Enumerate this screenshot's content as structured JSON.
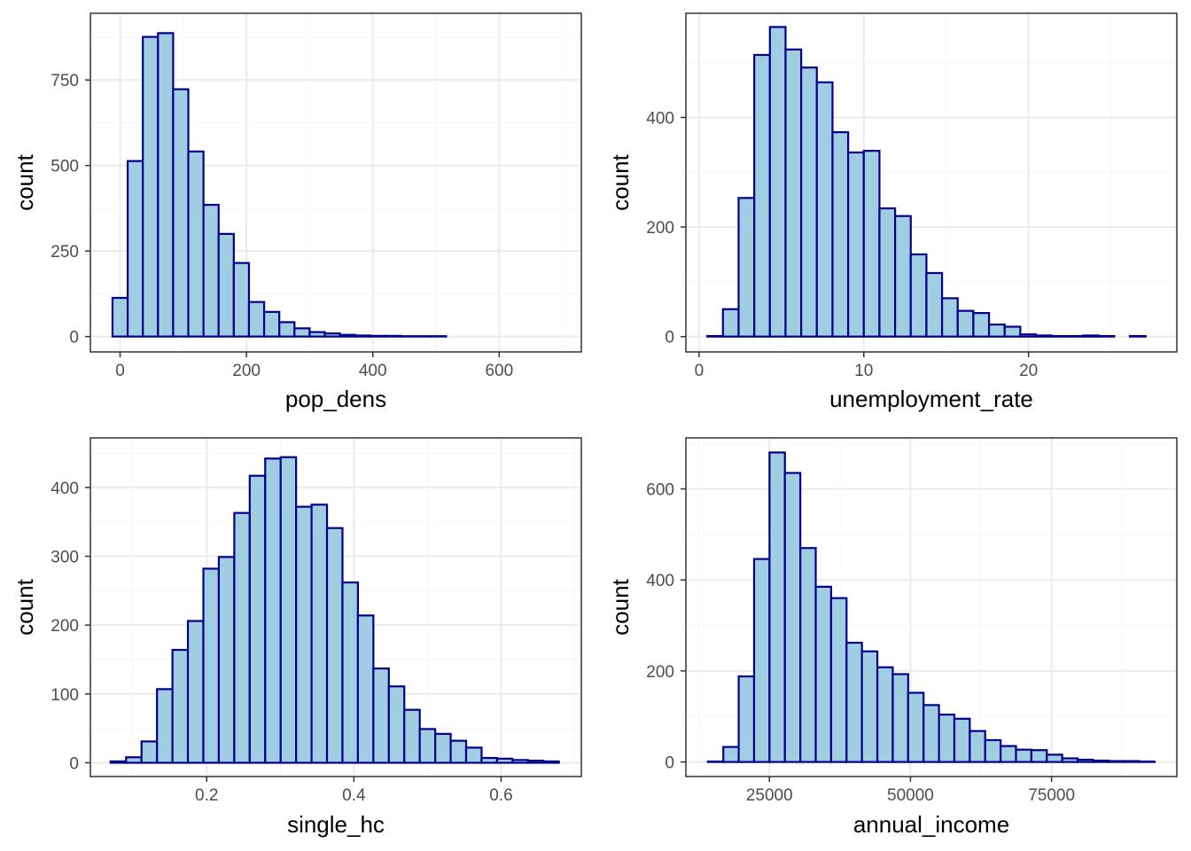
{
  "colors": {
    "bar_fill": "#a1cde3",
    "bar_stroke": "#00008b",
    "panel_border": "#333333",
    "grid_major": "#ebebeb",
    "grid_minor": "#f5f5f5",
    "tick_text": "#4d4d4d"
  },
  "chart_data": [
    {
      "type": "bar",
      "subtype": "histogram",
      "xlabel": "pop_dens",
      "ylabel": "count",
      "xlim": [
        -47,
        730
      ],
      "ylim": [
        -45,
        945
      ],
      "xticks": [
        0,
        200,
        400,
        600
      ],
      "yticks": [
        0,
        250,
        500,
        750
      ],
      "xticks_minor": [
        100,
        300,
        500,
        700
      ],
      "yticks_minor": [
        125,
        375,
        625,
        875
      ],
      "bin_start": -12,
      "bin_width": 24,
      "counts": [
        113,
        513,
        876,
        887,
        723,
        541,
        385,
        300,
        215,
        101,
        72,
        42,
        24,
        13,
        9,
        5,
        3,
        2,
        2,
        1,
        1,
        1,
        0,
        0,
        0,
        0,
        0,
        0,
        0
      ],
      "grid": true
    },
    {
      "type": "bar",
      "subtype": "histogram",
      "xlabel": "unemployment_rate",
      "ylabel": "count",
      "xlim": [
        -0.8,
        29.0
      ],
      "ylim": [
        -28,
        590
      ],
      "xticks": [
        0,
        10,
        20
      ],
      "yticks": [
        0,
        200,
        400
      ],
      "xticks_minor": [
        5,
        15,
        25
      ],
      "yticks_minor": [
        100,
        300,
        500
      ],
      "bin_start": 0.5,
      "bin_width": 0.95,
      "counts": [
        1,
        50,
        253,
        514,
        565,
        524,
        491,
        464,
        373,
        336,
        339,
        234,
        220,
        150,
        116,
        70,
        47,
        43,
        22,
        18,
        4,
        2,
        1,
        1,
        2,
        1,
        0,
        1
      ],
      "grid": true
    },
    {
      "type": "bar",
      "subtype": "histogram",
      "xlabel": "single_hc",
      "ylabel": "count",
      "xlim": [
        0.042,
        0.709
      ],
      "ylim": [
        -20,
        472
      ],
      "xticks": [
        0.2,
        0.4,
        0.6
      ],
      "yticks": [
        0,
        100,
        200,
        300,
        400
      ],
      "xticks_minor": [
        0.1,
        0.3,
        0.5,
        0.7
      ],
      "yticks_minor": [
        50,
        150,
        250,
        350,
        450
      ],
      "bin_start": 0.0695,
      "bin_width": 0.021,
      "counts": [
        2,
        8,
        31,
        107,
        164,
        206,
        282,
        299,
        363,
        417,
        442,
        444,
        372,
        375,
        341,
        262,
        214,
        137,
        111,
        77,
        49,
        42,
        32,
        22,
        7,
        6,
        4,
        3,
        2
      ],
      "grid": true
    },
    {
      "type": "bar",
      "subtype": "histogram",
      "xlabel": "annual_income",
      "ylabel": "count",
      "xlim": [
        10200,
        97200
      ],
      "ylim": [
        -32,
        712
      ],
      "xticks": [
        25000,
        50000,
        75000
      ],
      "yticks": [
        0,
        200,
        400,
        600
      ],
      "xticks_minor": [
        12500,
        37500,
        62500,
        87500
      ],
      "yticks_minor": [
        100,
        300,
        500,
        700
      ],
      "bin_start": 14100,
      "bin_width": 2730,
      "counts": [
        1,
        33,
        188,
        446,
        680,
        635,
        470,
        385,
        360,
        262,
        243,
        208,
        193,
        152,
        125,
        104,
        95,
        68,
        48,
        35,
        27,
        26,
        16,
        8,
        5,
        3,
        2,
        2,
        1
      ],
      "grid": true
    }
  ]
}
